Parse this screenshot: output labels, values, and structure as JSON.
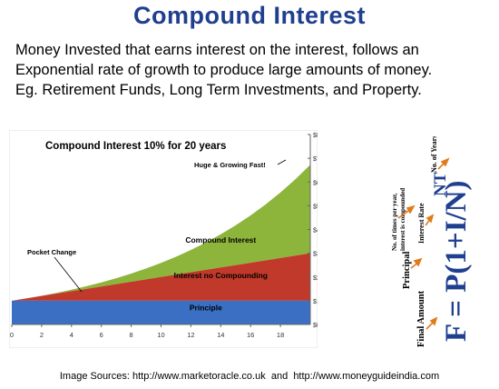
{
  "title": "Compound Interest",
  "description": [
    "Money Invested that earns interest on the interest, follows an",
    "Exponential rate  of growth to produce large amounts  of money.",
    "Eg. Retirement Funds, Long Term Investments, and Property."
  ],
  "chart_data": {
    "type": "area",
    "title": "Compound Interest 10% for 20 years",
    "x": [
      0,
      1,
      2,
      3,
      4,
      5,
      6,
      7,
      8,
      9,
      10,
      11,
      12,
      13,
      14,
      15,
      16,
      17,
      18,
      19,
      20
    ],
    "x_ticks": [
      0,
      2,
      4,
      6,
      8,
      10,
      12,
      14,
      16,
      18
    ],
    "y_ticks": [
      "$0",
      "$1,000",
      "$2,000",
      "$3,000",
      "$4,000",
      "$5,000",
      "$6,000",
      "$7,000",
      "$8,000"
    ],
    "ylim": [
      0,
      8000
    ],
    "series": [
      {
        "name": "Principle",
        "values": [
          1000,
          1000,
          1000,
          1000,
          1000,
          1000,
          1000,
          1000,
          1000,
          1000,
          1000,
          1000,
          1000,
          1000,
          1000,
          1000,
          1000,
          1000,
          1000,
          1000,
          1000
        ],
        "color": "#3a6fc4"
      },
      {
        "name": "Interest no Compounding",
        "values": [
          1000,
          1100,
          1200,
          1300,
          1400,
          1500,
          1600,
          1700,
          1800,
          1900,
          2000,
          2100,
          2200,
          2300,
          2400,
          2500,
          2600,
          2700,
          2800,
          2900,
          3000
        ],
        "color": "#c0392b"
      },
      {
        "name": "Compound Interest",
        "values": [
          1000,
          1100,
          1210,
          1331,
          1464,
          1611,
          1772,
          1949,
          2144,
          2358,
          2594,
          2853,
          3138,
          3452,
          3797,
          4177,
          4595,
          5054,
          5560,
          6116,
          6727
        ],
        "color": "#8db53c"
      }
    ],
    "annotations": [
      "Huge & Growing Fast!",
      "Pocket Change"
    ]
  },
  "formula": {
    "equation": "F = P(1+I/N)",
    "exponent": "NT",
    "labels": {
      "final_amount": "Final Amount",
      "principal": "Principal",
      "interest_rate": "Interest Rate",
      "times_per_year": "No. of times per year, interest is compounded",
      "years": "No. of Years"
    },
    "colors": {
      "formula": "#1f3f8f",
      "arrow": "#e07b1a"
    }
  },
  "sources": {
    "label": "Image Sources:",
    "url1": "http://www.marketoracle.co.uk",
    "joiner": "and",
    "url2": "http://www.moneyguideindia.com"
  }
}
